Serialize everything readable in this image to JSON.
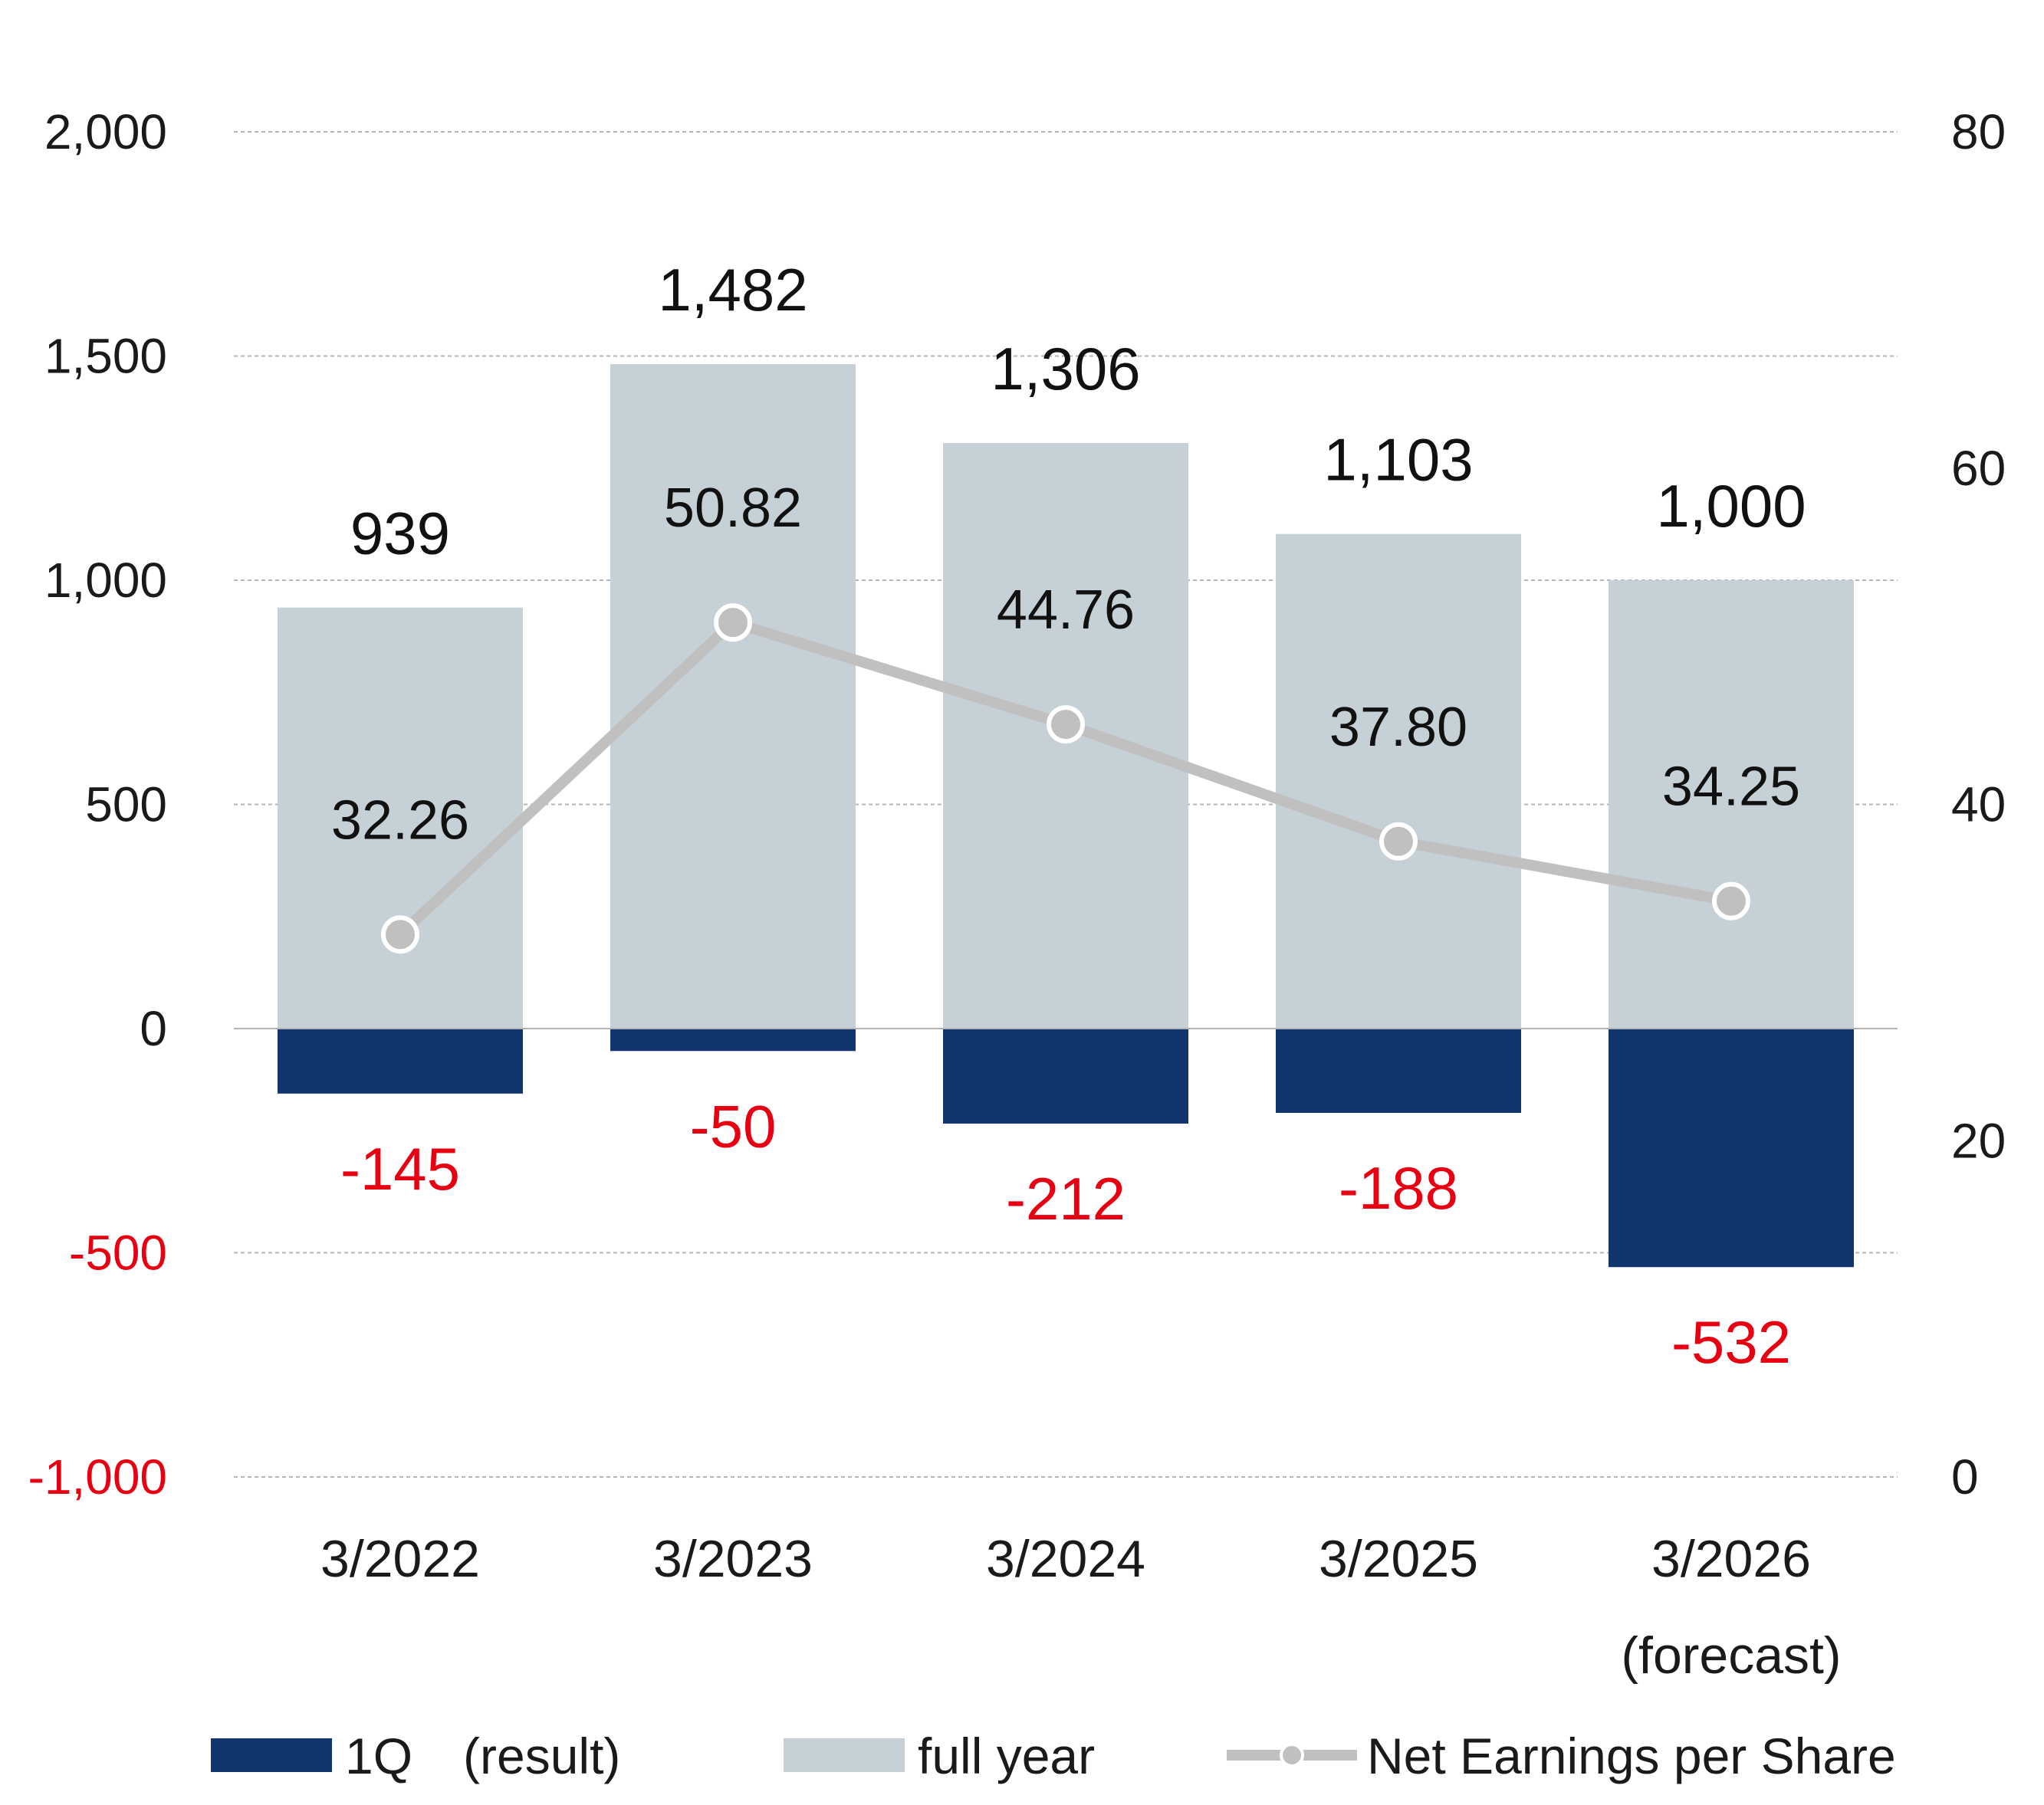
{
  "chart_data": {
    "type": "bar",
    "categories": [
      "3/2022",
      "3/2023",
      "3/2024",
      "3/2025",
      "3/2026"
    ],
    "category_sublabels": [
      "",
      "",
      "",
      "",
      "(forecast)"
    ],
    "series": [
      {
        "name": "1Q　(result)",
        "kind": "bar",
        "axis": "left",
        "color": "#10356f",
        "values": [
          -145,
          -50,
          -212,
          -188,
          -532
        ],
        "labels": [
          "-145",
          "-50",
          "-212",
          "-188",
          "-532"
        ],
        "label_color": "#e60012"
      },
      {
        "name": "full year",
        "kind": "bar",
        "axis": "left",
        "color": "#c5d0d7",
        "values": [
          939,
          1482,
          1306,
          1103,
          1000
        ],
        "labels": [
          "939",
          "1,482",
          "1,306",
          "1,103",
          "1,000"
        ],
        "label_color": "#111111"
      },
      {
        "name": "Net Earnings per Share",
        "kind": "line",
        "axis": "right",
        "color": "#c0c0c0",
        "values": [
          32.26,
          50.82,
          44.76,
          37.8,
          34.25
        ],
        "labels": [
          "32.26",
          "50.82",
          "44.76",
          "37.80",
          "34.25"
        ],
        "label_color": "#111111"
      }
    ],
    "left_axis": {
      "ylim": [
        -1000,
        2000
      ],
      "ticks": [
        -1000,
        -500,
        0,
        500,
        1000,
        1500,
        2000
      ],
      "tick_labels": [
        "-1,000",
        "-500",
        "0",
        "500",
        "1,000",
        "1,500",
        "2,000"
      ],
      "negative_color": "#e60012"
    },
    "right_axis": {
      "ylim": [
        0,
        80
      ],
      "ticks": [
        0,
        20,
        40,
        60,
        80
      ],
      "tick_labels": [
        "0",
        "20",
        "40",
        "60",
        "80"
      ]
    },
    "grid": "horizontal dashed",
    "legend_position": "bottom",
    "title": "",
    "xlabel": "",
    "ylabel": ""
  }
}
